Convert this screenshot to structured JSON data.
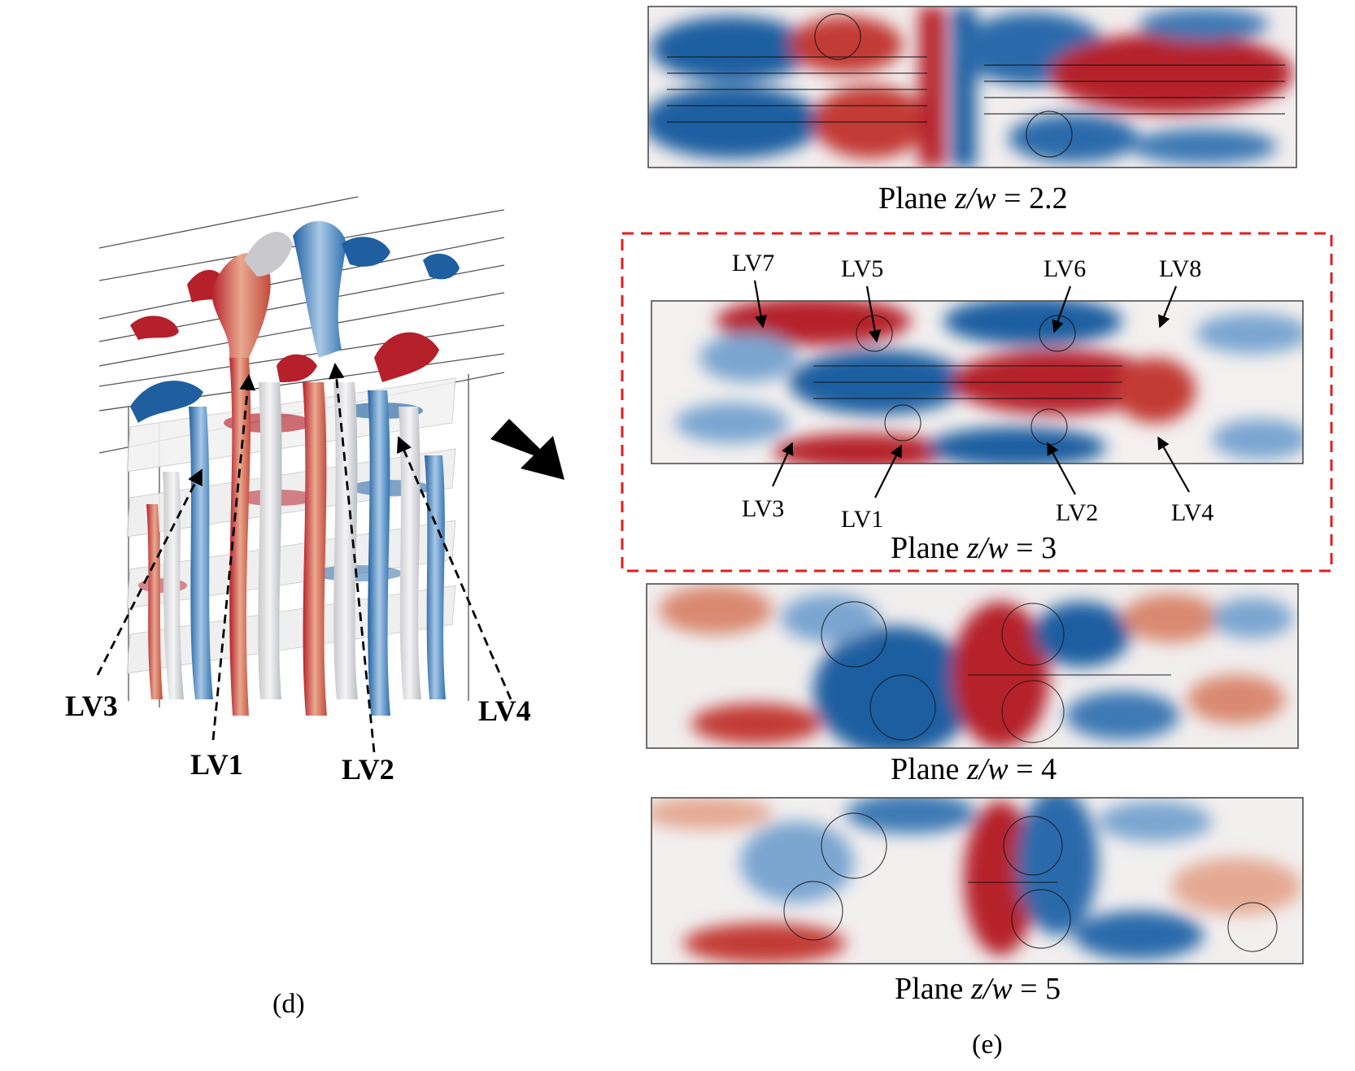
{
  "panel_d": {
    "caption": "(d)",
    "labels": [
      "LV3",
      "LV1",
      "LV2",
      "LV4"
    ]
  },
  "panel_e": {
    "caption": "(e)",
    "planes": [
      {
        "prefix": "Plane ",
        "var": "z/w",
        "suffix": " = 2.2"
      },
      {
        "prefix": "Plane ",
        "var": "z/w",
        "suffix": " = 3"
      },
      {
        "prefix": "Plane ",
        "var": "z/w",
        "suffix": " = 4"
      },
      {
        "prefix": "Plane ",
        "var": "z/w",
        "suffix": " = 5"
      }
    ],
    "highlight_labels": [
      "LV7",
      "LV5",
      "LV6",
      "LV8",
      "LV3",
      "LV1",
      "LV2",
      "LV4"
    ]
  },
  "colors": {
    "red": "#b5202a",
    "blue": "#1f5fa0",
    "light_red": "#eec2b0",
    "light_blue": "#b9d3ea",
    "highlight_box": "#e01e1e"
  }
}
